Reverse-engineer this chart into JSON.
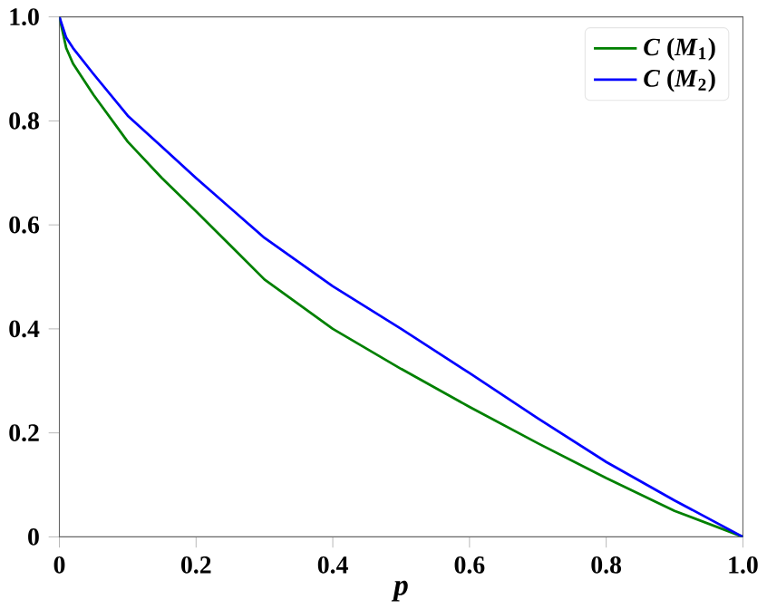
{
  "chart_data": {
    "type": "line",
    "xlabel": "*p*",
    "xlim": [
      0,
      1
    ],
    "ylim": [
      0,
      1
    ],
    "xticks": [
      {
        "value": 0,
        "label": "0"
      },
      0.2,
      0.4,
      0.6,
      0.8,
      {
        "value": 1,
        "label": "1.0"
      }
    ],
    "yticks": [
      {
        "value": 0,
        "label": "0"
      },
      0.2,
      0.4,
      0.6,
      0.8,
      {
        "value": 1,
        "label": "1.0"
      }
    ],
    "x": [
      0,
      0.01,
      0.02,
      0.05,
      0.1,
      0.15,
      0.2,
      0.3,
      0.4,
      0.5,
      0.6,
      0.7,
      0.8,
      0.9,
      1.0
    ],
    "legend": "top right",
    "grid": false,
    "marker": "none",
    "line_style": "solid",
    "series": [
      {
        "name": "*C* (*M*$_{1}$)",
        "color": "#008000",
        "values": [
          1,
          0.94,
          0.91,
          0.85,
          0.76,
          0.69,
          0.626,
          0.495,
          0.4,
          0.323,
          0.25,
          0.18,
          0.113,
          0.05,
          0
        ]
      },
      {
        "name": "*C* (*M*$_{2}$)",
        "color": "#0000ff",
        "values": [
          1,
          0.96,
          0.94,
          0.89,
          0.81,
          0.75,
          0.69,
          0.575,
          0.482,
          0.4,
          0.315,
          0.228,
          0.144,
          0.07,
          0
        ]
      }
    ]
  }
}
